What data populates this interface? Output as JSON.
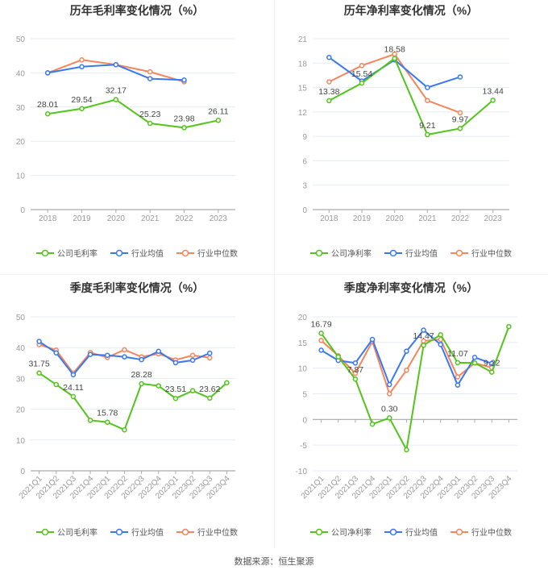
{
  "colors": {
    "company": "#52c41a",
    "avg": "#3a78f2",
    "median": "#f5855b"
  },
  "legend": {
    "gross": "公司毛利率",
    "net": "公司净利率",
    "avg": "行业均值",
    "median": "行业中位数"
  },
  "footer": "数据来源：恒生聚源",
  "chart_data": [
    {
      "type": "line",
      "title": "历年毛利率变化情况（%）",
      "categories": [
        "2018",
        "2019",
        "2020",
        "2021",
        "2022",
        "2023"
      ],
      "ylim": [
        0,
        50
      ],
      "yticks": [
        0,
        10,
        20,
        30,
        40,
        50
      ],
      "series": [
        {
          "name": "公司毛利率",
          "key": "company",
          "values": [
            28.01,
            29.54,
            32.17,
            25.23,
            23.98,
            26.11
          ],
          "labels": [
            0,
            1,
            2,
            3,
            4,
            5
          ]
        },
        {
          "name": "行业均值",
          "key": "avg",
          "values": [
            40.0,
            41.8,
            42.4,
            38.3,
            37.9,
            null
          ]
        },
        {
          "name": "行业中位数",
          "key": "median",
          "values": [
            40.0,
            43.8,
            42.4,
            40.3,
            37.4,
            null
          ]
        }
      ]
    },
    {
      "type": "line",
      "title": "历年净利率变化情况（%）",
      "categories": [
        "2018",
        "2019",
        "2020",
        "2021",
        "2022",
        "2023"
      ],
      "ylim": [
        0,
        21
      ],
      "yticks": [
        0,
        3,
        6,
        9,
        12,
        15,
        18,
        21
      ],
      "series": [
        {
          "name": "公司净利率",
          "key": "company",
          "values": [
            13.38,
            15.54,
            18.58,
            9.21,
            9.97,
            13.44
          ],
          "labels": [
            0,
            1,
            2,
            3,
            4,
            5
          ]
        },
        {
          "name": "行业均值",
          "key": "avg",
          "values": [
            18.7,
            15.8,
            18.4,
            15.0,
            16.3,
            null
          ]
        },
        {
          "name": "行业中位数",
          "key": "median",
          "values": [
            15.7,
            17.7,
            19.1,
            13.4,
            11.9,
            null
          ]
        }
      ]
    },
    {
      "type": "line",
      "title": "季度毛利率变化情况（%）",
      "categories": [
        "2021Q1",
        "2021Q2",
        "2021Q3",
        "2021Q4",
        "2022Q1",
        "2022Q2",
        "2022Q3",
        "2022Q4",
        "2023Q1",
        "2023Q2",
        "2023Q3",
        "2023Q4"
      ],
      "ylim": [
        0,
        50
      ],
      "yticks": [
        0,
        10,
        20,
        30,
        40,
        50
      ],
      "series": [
        {
          "name": "公司毛利率",
          "key": "company",
          "values": [
            31.75,
            28.0,
            24.11,
            16.4,
            15.78,
            13.3,
            28.28,
            27.6,
            23.51,
            26.0,
            23.62,
            28.6
          ],
          "labels": [
            0,
            2,
            4,
            6,
            8,
            10
          ]
        },
        {
          "name": "行业均值",
          "key": "avg",
          "values": [
            42.0,
            38.3,
            31.2,
            37.8,
            37.5,
            37.0,
            36.1,
            38.8,
            35.1,
            35.9,
            38.2,
            null
          ]
        },
        {
          "name": "行业中位数",
          "key": "median",
          "values": [
            41.0,
            39.2,
            31.7,
            38.4,
            36.8,
            39.3,
            37.0,
            38.0,
            36.0,
            37.5,
            36.7,
            null
          ]
        }
      ]
    },
    {
      "type": "line",
      "title": "季度净利率变化情况（%）",
      "categories": [
        "2021Q1",
        "2021Q2",
        "2021Q3",
        "2021Q4",
        "2022Q1",
        "2022Q2",
        "2022Q3",
        "2022Q4",
        "2023Q1",
        "2023Q2",
        "2023Q3",
        "2023Q4"
      ],
      "ylim": [
        -10,
        20
      ],
      "yticks": [
        -10,
        -5,
        0,
        5,
        10,
        15,
        20
      ],
      "series": [
        {
          "name": "公司净利率",
          "key": "company",
          "values": [
            16.79,
            12.2,
            7.87,
            -0.9,
            0.3,
            -5.9,
            14.47,
            16.5,
            11.07,
            11.0,
            9.22,
            18.1
          ],
          "labels": [
            0,
            2,
            4,
            6,
            8,
            10
          ]
        },
        {
          "name": "行业均值",
          "key": "avg",
          "values": [
            13.5,
            11.5,
            11.0,
            15.6,
            6.8,
            13.3,
            17.4,
            14.6,
            6.7,
            12.1,
            10.9,
            null
          ]
        },
        {
          "name": "行业中位数",
          "key": "median",
          "values": [
            15.4,
            12.4,
            9.0,
            15.2,
            5.0,
            9.6,
            15.3,
            15.6,
            8.3,
            11.0,
            10.1,
            null
          ]
        }
      ]
    }
  ]
}
